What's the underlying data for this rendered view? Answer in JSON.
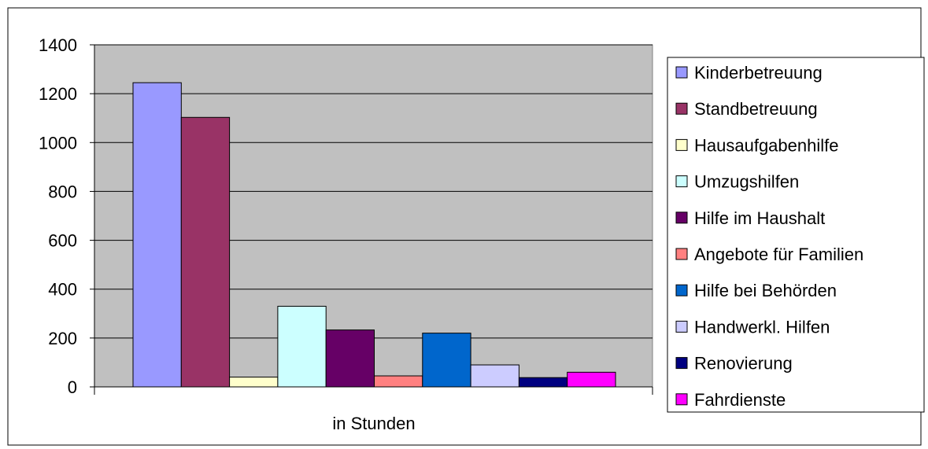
{
  "chart_data": {
    "type": "bar",
    "categories": [
      "in Stunden"
    ],
    "series": [
      {
        "name": "Kinderbetreuung",
        "values": [
          1245
        ],
        "color": "#9999ff"
      },
      {
        "name": "Standbetreuung",
        "values": [
          1103
        ],
        "color": "#993366"
      },
      {
        "name": "Hausaufgabenhilfe",
        "values": [
          40
        ],
        "color": "#ffffcc"
      },
      {
        "name": "Umzugshilfen",
        "values": [
          330
        ],
        "color": "#ccffff"
      },
      {
        "name": "Hilfe im Haushalt",
        "values": [
          233
        ],
        "color": "#660066"
      },
      {
        "name": "Angebote für Familien",
        "values": [
          45
        ],
        "color": "#ff8080"
      },
      {
        "name": "Hilfe bei Behörden",
        "values": [
          220
        ],
        "color": "#0066cc"
      },
      {
        "name": "Handwerkl. Hilfen",
        "values": [
          90
        ],
        "color": "#ccccff"
      },
      {
        "name": "Renovierung",
        "values": [
          38
        ],
        "color": "#000080"
      },
      {
        "name": "Fahrdienste",
        "values": [
          60
        ],
        "color": "#ff00ff"
      }
    ],
    "yticks": [
      "0",
      "200",
      "400",
      "600",
      "800",
      "1000",
      "1200",
      "1400"
    ],
    "ylim": [
      0,
      1400
    ],
    "grid": true,
    "legend_position": "right",
    "plot_background": "#c0c0c0"
  }
}
